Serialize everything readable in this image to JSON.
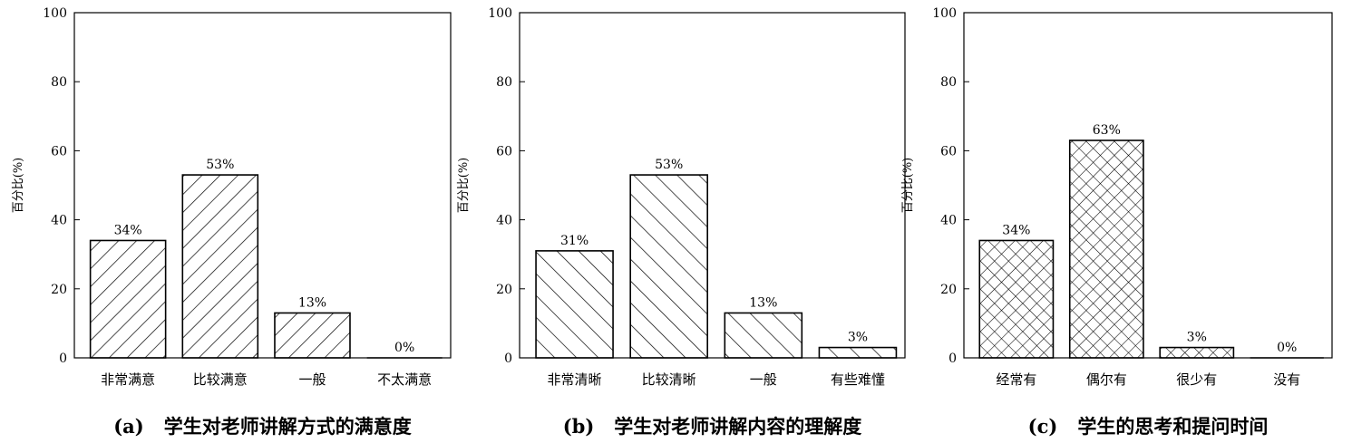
{
  "chart_data": [
    {
      "type": "bar",
      "caption_label": "(a)",
      "title": "学生对老师讲解方式的满意度",
      "ylabel": "百分比(%)",
      "xlabel": "",
      "ylim": [
        0,
        100
      ],
      "yticks": [
        0,
        20,
        40,
        60,
        80,
        100
      ],
      "categories": [
        "非常满意",
        "比较满意",
        "一般",
        "不太满意"
      ],
      "values": [
        34,
        53,
        13,
        0
      ],
      "value_labels": [
        "34%",
        "53%",
        "13%",
        "0%"
      ],
      "pattern": "diagonal-right",
      "grid": false,
      "legend": "none"
    },
    {
      "type": "bar",
      "caption_label": "(b)",
      "title": "学生对老师讲解内容的理解度",
      "ylabel": "百分比(%)",
      "xlabel": "",
      "ylim": [
        0,
        100
      ],
      "yticks": [
        0,
        20,
        40,
        60,
        80,
        100
      ],
      "categories": [
        "非常清晰",
        "比较清晰",
        "一般",
        "有些难懂"
      ],
      "values": [
        31,
        53,
        13,
        3
      ],
      "value_labels": [
        "31%",
        "53%",
        "13%",
        "3%"
      ],
      "pattern": "diagonal-left",
      "grid": false,
      "legend": "none"
    },
    {
      "type": "bar",
      "caption_label": "(c)",
      "title": "学生的思考和提问时间",
      "ylabel": "百分比(%)",
      "xlabel": "",
      "ylim": [
        0,
        100
      ],
      "yticks": [
        0,
        20,
        40,
        60,
        80,
        100
      ],
      "categories": [
        "经常有",
        "偶尔有",
        "很少有",
        "没有"
      ],
      "values": [
        34,
        63,
        3,
        0
      ],
      "value_labels": [
        "34%",
        "63%",
        "3%",
        "0%"
      ],
      "pattern": "crosshatch",
      "grid": false,
      "legend": "none"
    }
  ]
}
